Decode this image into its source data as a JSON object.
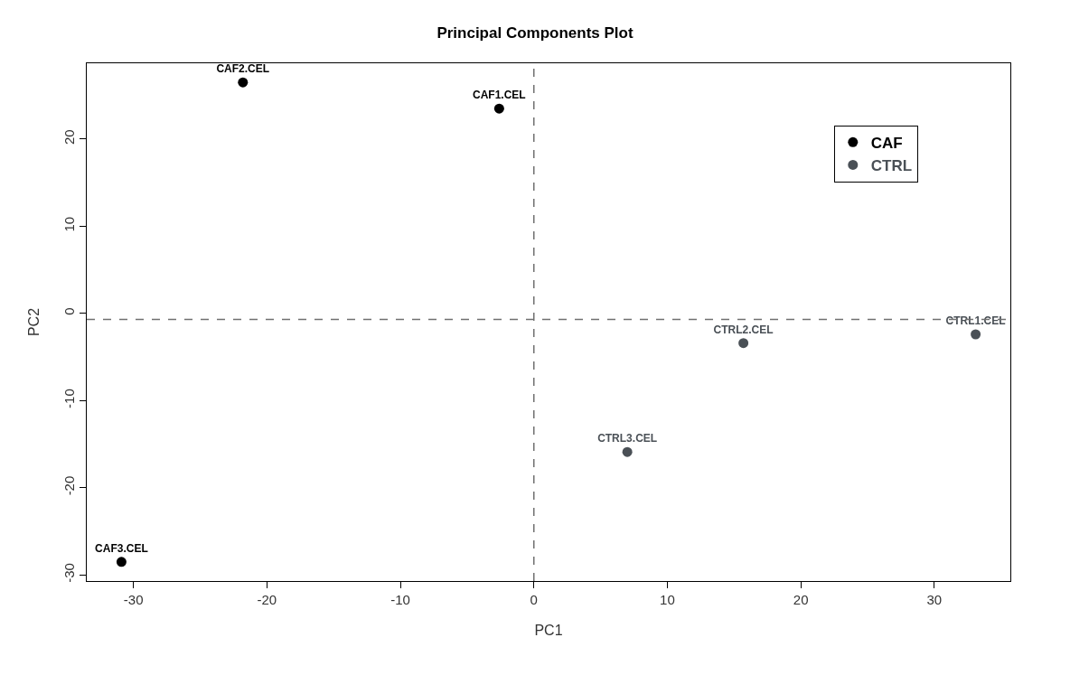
{
  "chart_data": {
    "type": "scatter",
    "title": "Principal Components Plot",
    "xlabel": "PC1",
    "ylabel": "PC2",
    "series": [
      {
        "name": "CAF",
        "color": "#000000",
        "x": [
          -2.6,
          -21.8,
          -30.9
        ],
        "values": [
          23.5,
          26.5,
          -28.5
        ],
        "value_labels": [
          "CAF1.CEL",
          "CAF2.CEL",
          "CAF3.CEL"
        ]
      },
      {
        "name": "CTRL",
        "color": "#4a5056",
        "x": [
          33.1,
          15.7,
          7.0
        ],
        "values": [
          -2.4,
          -3.4,
          -15.9
        ],
        "value_labels": [
          "CTRL1.CEL",
          "CTRL2.CEL",
          "CTRL3.CEL"
        ]
      }
    ],
    "xlim": [
      -33.5,
      35.7
    ],
    "xticks": [
      -30,
      -20,
      -10,
      0,
      10,
      20,
      30
    ],
    "ylim": [
      -30.7,
      28.7
    ],
    "yticks": [
      -30,
      -20,
      -10,
      0,
      10,
      20
    ],
    "ref_lines": [
      {
        "axis": "x",
        "value": 0,
        "line_style": "dashed",
        "color": "#707070"
      },
      {
        "axis": "y",
        "value": -0.7,
        "line_style": "dashed",
        "color": "#707070"
      }
    ],
    "legend": "top right",
    "marker": "circle",
    "grid": false
  }
}
